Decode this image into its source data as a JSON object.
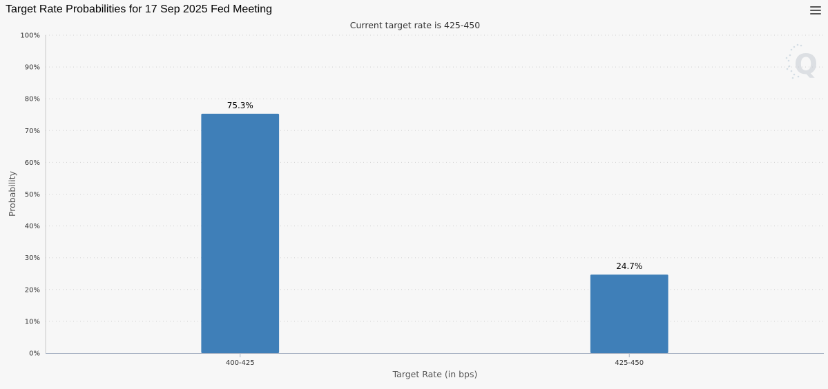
{
  "header": {
    "title": "Target Rate Probabilities for 17 Sep 2025 Fed Meeting",
    "menu_icon": "hamburger-menu-icon"
  },
  "watermark": {
    "icon": "q-logo-icon",
    "text": "Q"
  },
  "colors": {
    "bar": "#3f7fb8",
    "background": "#f7f7f7",
    "grid": "#d0d0d0"
  },
  "chart_data": {
    "type": "bar",
    "subtitle": "Current target rate is 425-450",
    "categories": [
      "400-425",
      "425-450"
    ],
    "values": [
      75.3,
      24.7
    ],
    "data_labels": [
      "75.3%",
      "24.7%"
    ],
    "xlabel": "Target Rate (in bps)",
    "ylabel": "Probability",
    "ylim": [
      0,
      100
    ],
    "yticks": [
      0,
      10,
      20,
      30,
      40,
      50,
      60,
      70,
      80,
      90,
      100
    ],
    "ytick_labels": [
      "0%",
      "10%",
      "20%",
      "30%",
      "40%",
      "50%",
      "60%",
      "70%",
      "80%",
      "90%",
      "100%"
    ],
    "grid": true,
    "grid_style": "dotted",
    "legend": "none"
  }
}
